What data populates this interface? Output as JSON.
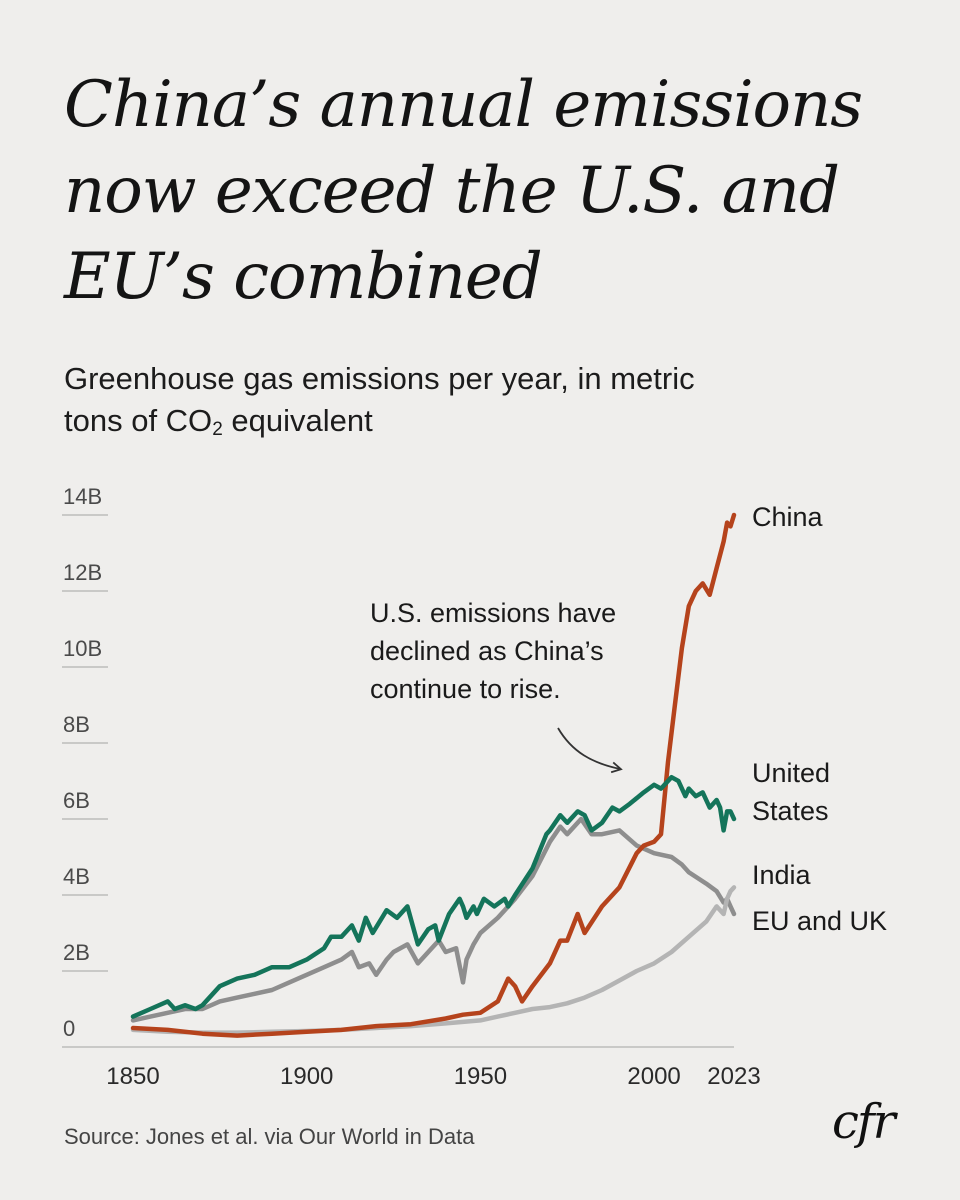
{
  "headline": {
    "lines": [
      "China’s annual emissions",
      "now exceed the U.S. and",
      "EU’s combined"
    ]
  },
  "subtitle": {
    "line1": "Greenhouse gas emissions per year, in metric",
    "line2_before": "tons of CO",
    "line2_sub": "2",
    "line2_after": " equivalent"
  },
  "source": "Source: Jones et al. via Our World in Data",
  "logo": "cfr",
  "colors": {
    "china": "#b5431c",
    "united_states": "#14745a",
    "india": "#b4b4b4",
    "eu_uk": "#8e8e8e",
    "grid": "#c9c9c7",
    "background": "#efeeec"
  },
  "chart_data": {
    "type": "line",
    "title": "China’s annual emissions now exceed the U.S. and EU’s combined",
    "ylabel": "Greenhouse gas emissions per year, in metric tons of CO2 equivalent",
    "xlabel": "",
    "xlim": [
      1850,
      2023
    ],
    "ylim": [
      0,
      14
    ],
    "y_unit": "billion tonnes CO2e",
    "x_ticks": [
      "1850",
      "1900",
      "1950",
      "2000",
      "2023"
    ],
    "x_tick_values": [
      1850,
      1900,
      1950,
      2000,
      2023
    ],
    "y_ticks": [
      "0",
      "2B",
      "4B",
      "6B",
      "8B",
      "10B",
      "12B",
      "14B"
    ],
    "y_tick_values": [
      0,
      2,
      4,
      6,
      8,
      10,
      12,
      14
    ],
    "grid": true,
    "legend": "inline labels at right end of lines",
    "annotation": {
      "lines": [
        "U.S. emissions have",
        "declined as China’s",
        "continue to rise."
      ]
    },
    "series": [
      {
        "key": "eu_uk",
        "name": "EU and UK",
        "label_lines": [
          "EU and UK"
        ],
        "x": [
          1850,
          1855,
          1860,
          1865,
          1870,
          1875,
          1880,
          1885,
          1890,
          1895,
          1900,
          1905,
          1910,
          1913,
          1915,
          1918,
          1920,
          1923,
          1925,
          1929,
          1932,
          1935,
          1938,
          1940,
          1943,
          1945,
          1946,
          1948,
          1950,
          1955,
          1960,
          1965,
          1970,
          1973,
          1975,
          1979,
          1982,
          1985,
          1990,
          1995,
          2000,
          2005,
          2008,
          2010,
          2015,
          2018,
          2020,
          2021,
          2022,
          2023
        ],
        "y": [
          0.7,
          0.8,
          0.9,
          1.0,
          1.0,
          1.2,
          1.3,
          1.4,
          1.5,
          1.7,
          1.9,
          2.1,
          2.3,
          2.5,
          2.1,
          2.2,
          1.9,
          2.3,
          2.5,
          2.7,
          2.2,
          2.5,
          2.8,
          2.5,
          2.6,
          1.7,
          2.3,
          2.7,
          3.0,
          3.4,
          3.9,
          4.5,
          5.4,
          5.8,
          5.6,
          6.0,
          5.6,
          5.6,
          5.7,
          5.3,
          5.1,
          5.0,
          4.8,
          4.6,
          4.3,
          4.1,
          3.8,
          3.9,
          3.7,
          3.5
        ]
      },
      {
        "key": "india",
        "name": "India",
        "label_lines": [
          "India"
        ],
        "x": [
          1850,
          1860,
          1870,
          1880,
          1890,
          1900,
          1910,
          1920,
          1930,
          1940,
          1950,
          1955,
          1960,
          1965,
          1970,
          1975,
          1980,
          1985,
          1990,
          1995,
          2000,
          2005,
          2010,
          2015,
          2018,
          2020,
          2021,
          2022,
          2023
        ],
        "y": [
          0.45,
          0.4,
          0.38,
          0.38,
          0.4,
          0.42,
          0.45,
          0.5,
          0.55,
          0.62,
          0.7,
          0.8,
          0.9,
          1.0,
          1.05,
          1.15,
          1.3,
          1.5,
          1.75,
          2.0,
          2.2,
          2.5,
          2.9,
          3.3,
          3.7,
          3.5,
          3.9,
          4.1,
          4.2
        ]
      },
      {
        "key": "china",
        "name": "China",
        "label_lines": [
          "China"
        ],
        "x": [
          1850,
          1860,
          1870,
          1880,
          1890,
          1900,
          1910,
          1920,
          1930,
          1940,
          1945,
          1950,
          1955,
          1958,
          1960,
          1962,
          1965,
          1970,
          1973,
          1975,
          1978,
          1980,
          1985,
          1990,
          1995,
          1997,
          2000,
          2002,
          2004,
          2006,
          2008,
          2010,
          2012,
          2014,
          2016,
          2018,
          2020,
          2021,
          2022,
          2023
        ],
        "y": [
          0.5,
          0.45,
          0.35,
          0.3,
          0.35,
          0.4,
          0.45,
          0.55,
          0.6,
          0.75,
          0.85,
          0.9,
          1.2,
          1.8,
          1.6,
          1.2,
          1.6,
          2.2,
          2.8,
          2.8,
          3.5,
          3.0,
          3.7,
          4.2,
          5.1,
          5.3,
          5.4,
          5.6,
          7.5,
          9.0,
          10.5,
          11.6,
          12.0,
          12.2,
          11.9,
          12.6,
          13.3,
          13.8,
          13.7,
          14.0
        ]
      },
      {
        "key": "united_states",
        "name": "United States",
        "label_lines": [
          "United",
          "States"
        ],
        "x": [
          1850,
          1855,
          1860,
          1862,
          1865,
          1868,
          1870,
          1875,
          1880,
          1885,
          1890,
          1895,
          1900,
          1905,
          1907,
          1910,
          1913,
          1915,
          1917,
          1919,
          1921,
          1923,
          1926,
          1929,
          1932,
          1935,
          1937,
          1938,
          1941,
          1944,
          1945,
          1946,
          1948,
          1949,
          1951,
          1954,
          1957,
          1958,
          1960,
          1965,
          1969,
          1970,
          1973,
          1975,
          1978,
          1980,
          1982,
          1985,
          1988,
          1990,
          1993,
          1997,
          2000,
          2002,
          2005,
          2007,
          2009,
          2010,
          2012,
          2014,
          2016,
          2018,
          2019,
          2020,
          2021,
          2022,
          2023
        ],
        "y": [
          0.8,
          1.0,
          1.2,
          1.0,
          1.1,
          1.0,
          1.1,
          1.6,
          1.8,
          1.9,
          2.1,
          2.1,
          2.3,
          2.6,
          2.9,
          2.9,
          3.2,
          2.8,
          3.4,
          3.0,
          3.3,
          3.6,
          3.4,
          3.7,
          2.7,
          3.1,
          3.2,
          2.8,
          3.5,
          3.9,
          3.7,
          3.4,
          3.7,
          3.5,
          3.9,
          3.7,
          3.9,
          3.7,
          4.0,
          4.7,
          5.6,
          5.7,
          6.1,
          5.9,
          6.2,
          6.1,
          5.7,
          5.9,
          6.3,
          6.2,
          6.4,
          6.7,
          6.9,
          6.8,
          7.1,
          7.0,
          6.6,
          6.8,
          6.6,
          6.7,
          6.3,
          6.5,
          6.3,
          5.7,
          6.2,
          6.2,
          6.0
        ]
      }
    ]
  }
}
